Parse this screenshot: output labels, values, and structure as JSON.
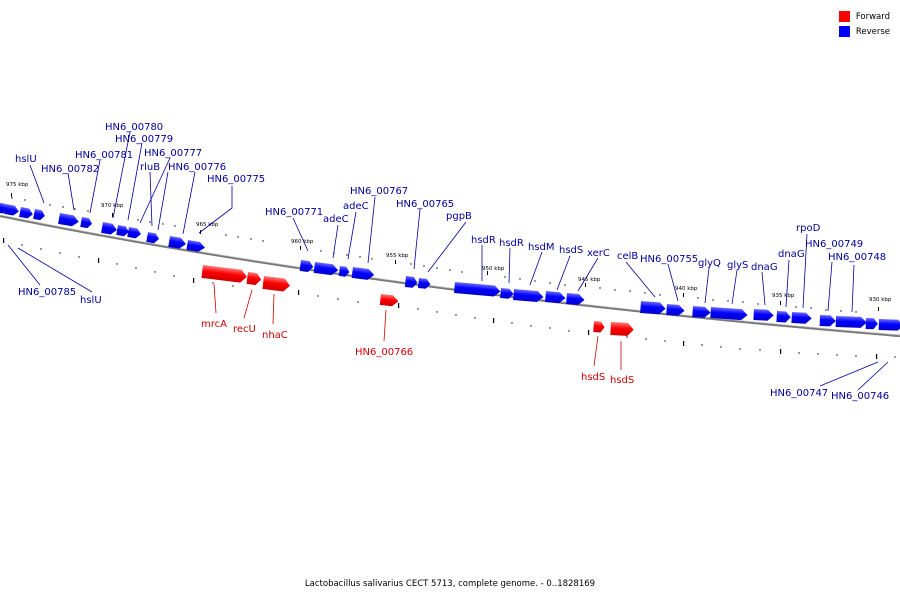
{
  "legend": {
    "forward": {
      "label": "Forward",
      "color": "#ff0000"
    },
    "reverse": {
      "label": "Reverse",
      "color": "#0000ff"
    }
  },
  "caption": "Lactobacillus salivarius CECT 5713, complete genome. - 0..1828169",
  "scale_labels": [
    "975 kbp",
    "970 kbp",
    "965 kbp",
    "960 kbp",
    "955 kbp",
    "950 kbp",
    "945 kbp",
    "940 kbp",
    "935 kbp",
    "930 kbp"
  ],
  "forward_genes": [
    "mrcA",
    "recU",
    "nhaC",
    "HN6_00766",
    "hsdS",
    "hsdS"
  ],
  "reverse_genes": [
    "hslU",
    "HN6_00782",
    "HN6_00781",
    "HN6_00780",
    "HN6_00779",
    "HN6_00777",
    "rluB",
    "HN6_00776",
    "HN6_00775",
    "HN6_00771",
    "adeC",
    "adeC",
    "HN6_00767",
    "HN6_00765",
    "pgpB",
    "hsdR",
    "hsdR",
    "hsdM",
    "hsdS",
    "xerC",
    "celB",
    "HN6_00755",
    "glyQ",
    "glyS",
    "dnaG",
    "dnaG",
    "rpoD",
    "HN6_00749",
    "HN6_00748",
    "HN6_00785",
    "hslU",
    "HN6_00747",
    "HN6_00746"
  ]
}
